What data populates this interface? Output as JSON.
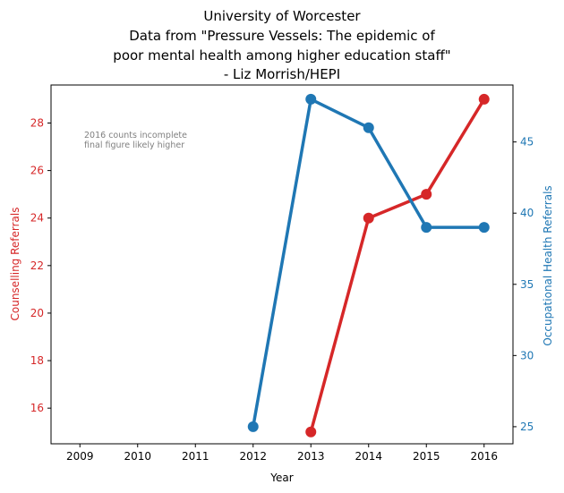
{
  "chart_data": {
    "type": "line",
    "title_lines": [
      "University of Worcester",
      "Data from \"Pressure Vessels: The epidemic of",
      "poor mental health among higher education staff\"",
      "- Liz Morrish/HEPI"
    ],
    "xlabel": "Year",
    "ylabel_left": "Counselling Referrals",
    "ylabel_right": "Occupational Health Referrals",
    "x_ticks": [
      "2009",
      "2010",
      "2011",
      "2012",
      "2013",
      "2014",
      "2015",
      "2016"
    ],
    "xlim": [
      2008.5,
      2016.5
    ],
    "left_axis": {
      "ylim": [
        14.5,
        29.6
      ],
      "ticks": [
        16,
        18,
        20,
        22,
        24,
        26,
        28
      ],
      "color": "#d62728"
    },
    "right_axis": {
      "ylim": [
        23.8,
        49.0
      ],
      "ticks": [
        25,
        30,
        35,
        40,
        45
      ],
      "color": "#1f77b4"
    },
    "series": [
      {
        "axis": "left",
        "color": "#d62728",
        "x": [
          2013,
          2014,
          2015,
          2016
        ],
        "y": [
          15,
          24,
          25,
          29
        ]
      },
      {
        "axis": "right",
        "color": "#1f77b4",
        "x": [
          2012,
          2013,
          2014,
          2015,
          2016
        ],
        "y": [
          25,
          48,
          46,
          39,
          39
        ]
      }
    ],
    "annotation": [
      "2016 counts incomplete",
      "final figure likely higher"
    ],
    "grid": false
  }
}
